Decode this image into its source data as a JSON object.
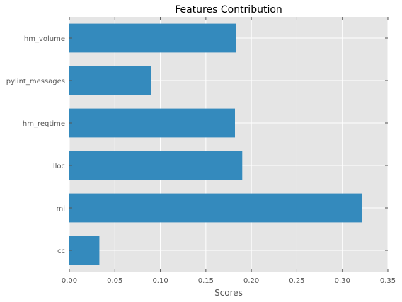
{
  "chart_data": {
    "type": "bar",
    "orientation": "horizontal",
    "title": "Features Contribution",
    "xlabel": "Scores",
    "ylabel": "",
    "categories": [
      "cc",
      "mi",
      "lloc",
      "hm_reqtime",
      "pylint_messages",
      "hm_volume"
    ],
    "values": [
      0.033,
      0.322,
      0.19,
      0.182,
      0.09,
      0.183
    ],
    "xlim": [
      0.0,
      0.35
    ],
    "xticks": [
      "0.00",
      "0.05",
      "0.10",
      "0.15",
      "0.20",
      "0.25",
      "0.30",
      "0.35"
    ],
    "grid": true,
    "legend": "none",
    "colors": {
      "bar": "#348abd",
      "plot_bg": "#e5e5e5",
      "grid": "#ffffff",
      "tick_text": "#555555"
    }
  }
}
